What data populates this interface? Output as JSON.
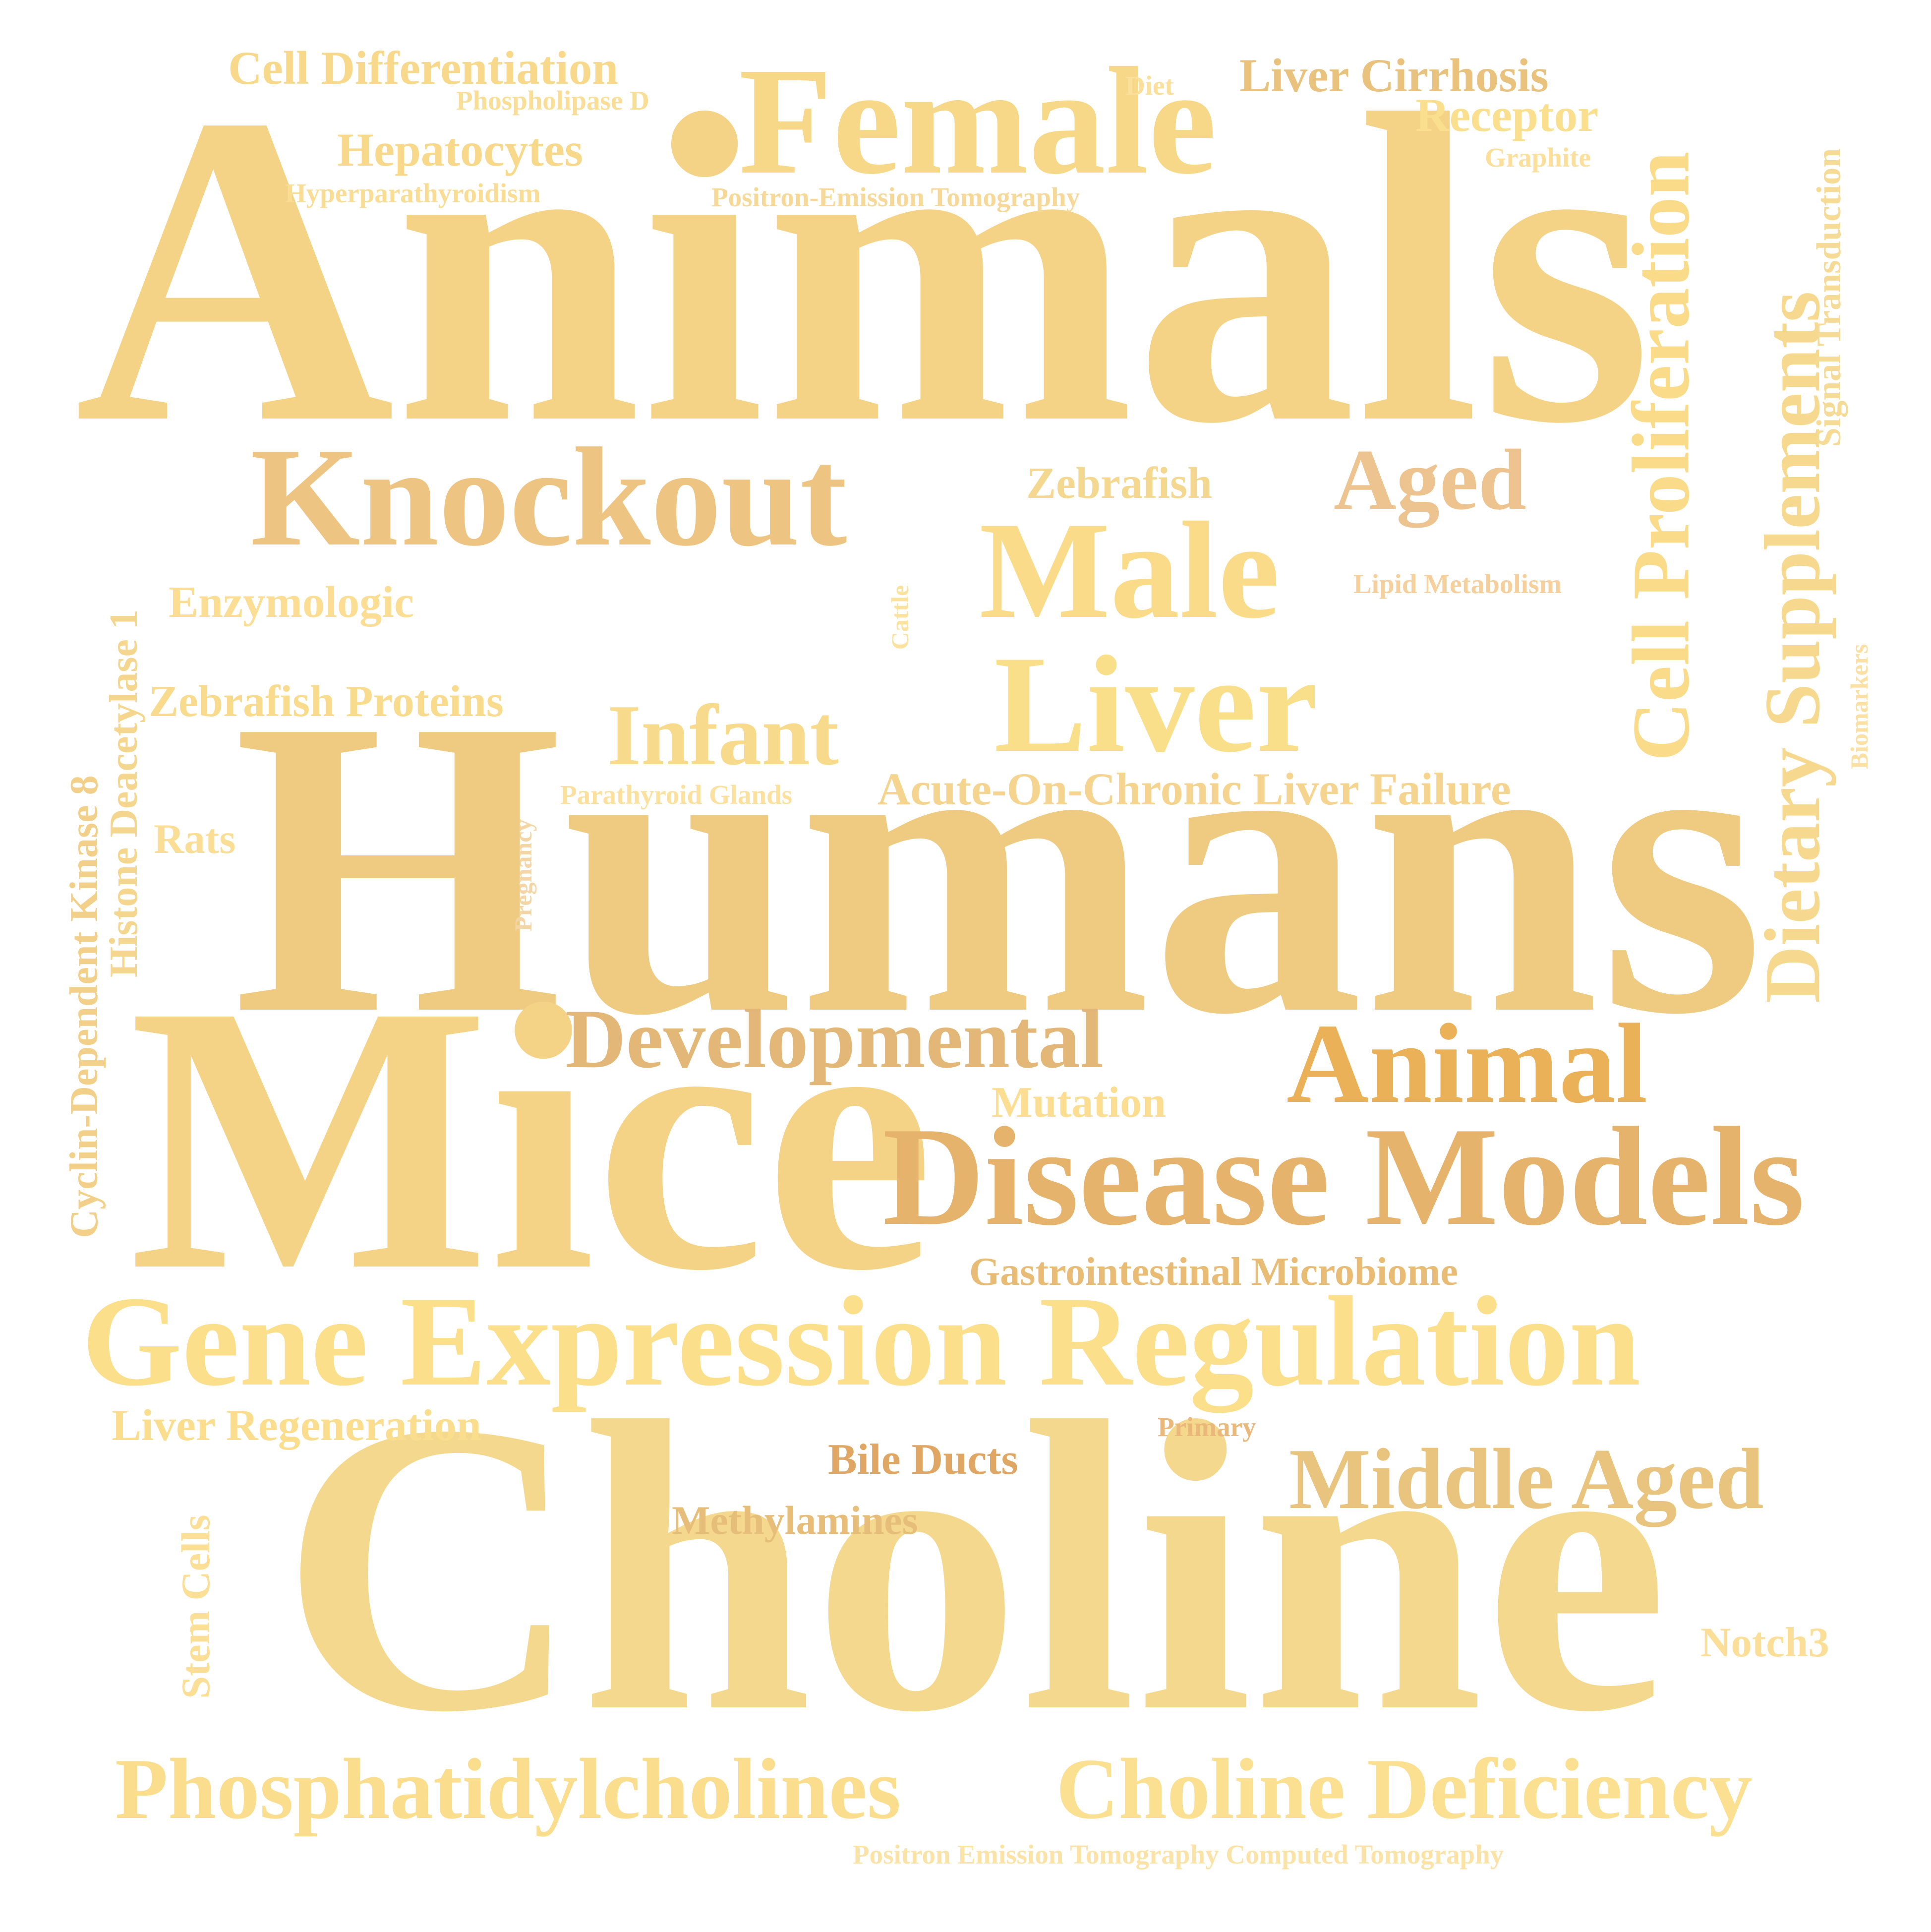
{
  "words": [
    {
      "id": "animals",
      "text": "Animals",
      "color": "#F4D386"
    },
    {
      "id": "humans",
      "text": "Humans",
      "color": "#EECB81"
    },
    {
      "id": "mice",
      "text": "Mice",
      "color": "#F4D387"
    },
    {
      "id": "choline",
      "text": "Choline",
      "color": "#F4D88E"
    },
    {
      "id": "gene-expression-regulation",
      "text": "Gene Expression Regulation",
      "color": "#FCDF8A"
    },
    {
      "id": "disease-models",
      "text": "Disease Models",
      "color": "#E6B36D"
    },
    {
      "id": "animal",
      "text": "Animal",
      "color": "#EBB158"
    },
    {
      "id": "female",
      "text": "Female",
      "color": "#F6D888"
    },
    {
      "id": "knockout",
      "text": "Knockout",
      "color": "#EDC482"
    },
    {
      "id": "male",
      "text": "Male",
      "color": "#FADB89"
    },
    {
      "id": "liver",
      "text": "Liver",
      "color": "#FADF8A"
    },
    {
      "id": "developmental",
      "text": "Developmental",
      "color": "#E2B778"
    },
    {
      "id": "cell-proliferation",
      "text": "Cell Proliferation",
      "color": "#FADB89"
    },
    {
      "id": "dietary-supplements",
      "text": "Dietary Supplements",
      "color": "#F6D98E"
    },
    {
      "id": "phosphatidylcholines",
      "text": "Phosphatidylcholines",
      "color": "#FBDD8E"
    },
    {
      "id": "choline-deficiency",
      "text": "Choline Deficiency",
      "color": "#FBE092"
    },
    {
      "id": "middle-aged",
      "text": "Middle Aged",
      "color": "#E9C47E"
    },
    {
      "id": "infant",
      "text": "Infant",
      "color": "#F8DA8C"
    },
    {
      "id": "aged",
      "text": "Aged",
      "color": "#EDC38F"
    },
    {
      "id": "acute-on-chronic-liver-failure",
      "text": "Acute-On-Chronic Liver Failure",
      "color": "#F5D490"
    },
    {
      "id": "gastrointestinal-microbiome",
      "text": "Gastrointestinal Microbiome",
      "color": "#E9BC76"
    },
    {
      "id": "cell-differentiation",
      "text": "Cell Differentiation",
      "color": "#F8D88A"
    },
    {
      "id": "hepatocytes",
      "text": "Hepatocytes",
      "color": "#F8D88A"
    },
    {
      "id": "liver-cirrhosis",
      "text": "Liver Cirrhosis",
      "color": "#E9C27E"
    },
    {
      "id": "receptor",
      "text": "Receptor",
      "color": "#FADF8E"
    },
    {
      "id": "zebrafish-proteins",
      "text": "Zebrafish Proteins",
      "color": "#F9DB8D"
    },
    {
      "id": "enzymologic",
      "text": "Enzymologic",
      "color": "#FBDE93"
    },
    {
      "id": "zebrafish",
      "text": "Zebrafish",
      "color": "#F5D88F"
    },
    {
      "id": "liver-regeneration",
      "text": "Liver Regeneration",
      "color": "#FBDE8D"
    },
    {
      "id": "mutation",
      "text": "Mutation",
      "color": "#FBDE91"
    },
    {
      "id": "bile-ducts",
      "text": "Bile Ducts",
      "color": "#E0A764"
    },
    {
      "id": "methylamines",
      "text": "Methylamines",
      "color": "#E7BE79"
    },
    {
      "id": "rats",
      "text": "Rats",
      "color": "#FBDE95"
    },
    {
      "id": "notch3",
      "text": "Notch3",
      "color": "#FBDF98"
    },
    {
      "id": "cyclin-dependent-kinase-8",
      "text": "Cyclin-Dependent Kinase 8",
      "color": "#F2D08A"
    },
    {
      "id": "histone-deacetylase-1",
      "text": "Histone Deacetylase 1",
      "color": "#F4D68E"
    },
    {
      "id": "stem-cells",
      "text": "Stem Cells",
      "color": "#FBDF97"
    },
    {
      "id": "signal-transduction",
      "text": "Signal Transduction",
      "color": "#F6DB96"
    },
    {
      "id": "phospholipase-d",
      "text": "Phospholipase D",
      "color": "#F9DE97"
    },
    {
      "id": "hyperparathyroidism",
      "text": "Hyperparathyroidism",
      "color": "#F9DD94"
    },
    {
      "id": "positron-emission-tomography",
      "text": "Positron-Emission Tomography",
      "color": "#F6D999"
    },
    {
      "id": "diet",
      "text": "Diet",
      "color": "#FBE09C"
    },
    {
      "id": "graphite",
      "text": "Graphite",
      "color": "#FBDF9B"
    },
    {
      "id": "lipid-metabolism",
      "text": "Lipid Metabolism",
      "color": "#F5CF9C"
    },
    {
      "id": "parathyroid-glands",
      "text": "Parathyroid Glands",
      "color": "#FBE09E"
    },
    {
      "id": "primary",
      "text": "Primary",
      "color": "#E9B87A"
    },
    {
      "id": "biomarkers",
      "text": "Biomarkers",
      "color": "#FBE0A3"
    },
    {
      "id": "cattle",
      "text": "Cattle",
      "color": "#FBE39F"
    },
    {
      "id": "pregnancy",
      "text": "Pregnancy",
      "color": "#F4D6A6"
    },
    {
      "id": "positron-emission-tomography-computed-tomography",
      "text": "Positron Emission Tomography Computed Tomography",
      "color": "#FBE3A7"
    }
  ]
}
